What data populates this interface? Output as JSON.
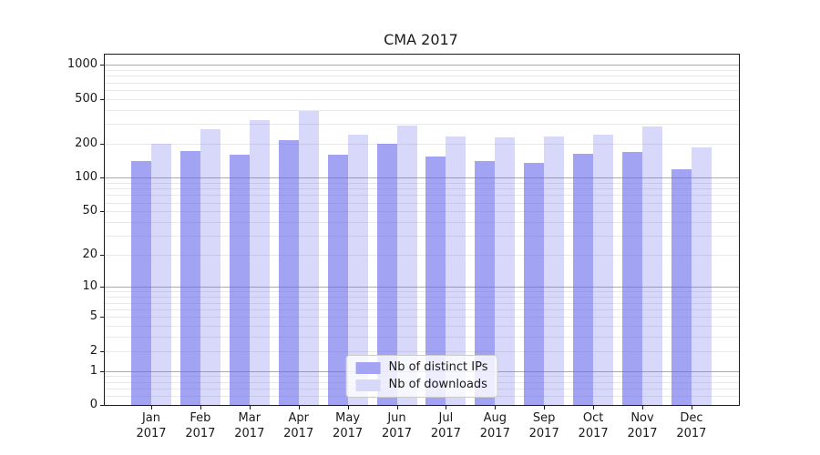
{
  "chart_data": {
    "type": "bar",
    "title": "CMA 2017",
    "categories": [
      "Jan",
      "Feb",
      "Mar",
      "Apr",
      "May",
      "Jun",
      "Jul",
      "Aug",
      "Sep",
      "Oct",
      "Nov",
      "Dec"
    ],
    "year": "2017",
    "series": [
      {
        "name": "Nb of distinct IPs",
        "color": "rgba(101,101,236,0.6)",
        "values": [
          140,
          172,
          162,
          218,
          162,
          200,
          155,
          142,
          136,
          163,
          170,
          120
        ]
      },
      {
        "name": "Nb of downloads",
        "color": "rgba(101,101,236,0.25)",
        "values": [
          200,
          270,
          325,
          390,
          240,
          290,
          235,
          228,
          235,
          240,
          285,
          185
        ]
      }
    ],
    "swatch_colors": [
      "#a4a4f4",
      "#d8d8fa"
    ],
    "yscale": "log1p",
    "yticks": [
      0,
      1,
      2,
      5,
      10,
      20,
      50,
      100,
      200,
      500,
      1000
    ],
    "ylim": [
      0,
      1230
    ],
    "xlabel": "",
    "ylabel": "",
    "grid": true,
    "legend_position": "lower center",
    "colors": {
      "spine": "#1c1c1c",
      "grid_major": "#ababab",
      "grid_minor": "#e9e9e9",
      "text": "#191919"
    }
  }
}
